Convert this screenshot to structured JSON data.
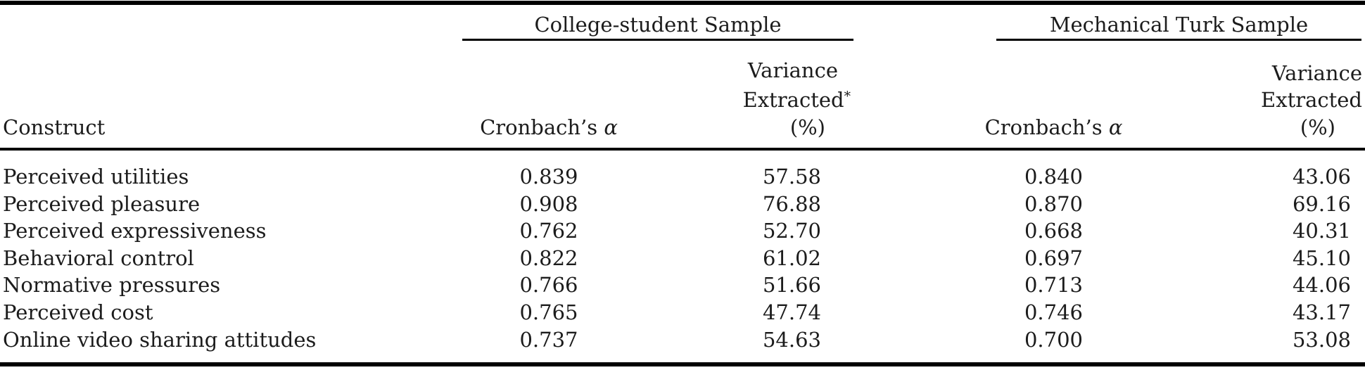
{
  "table": {
    "groups": [
      {
        "label": "College-student Sample"
      },
      {
        "label": "Mechanical Turk Sample"
      }
    ],
    "columns": {
      "construct": "Construct",
      "cronbach_prefix": "Cronbach’s",
      "alpha_symbol": "α",
      "variance_line1": "Variance",
      "variance_line2": "Extracted",
      "variance_star": "*",
      "variance_line3": "(%)"
    },
    "rows": [
      {
        "construct": "Perceived utilities",
        "college_alpha": "0.839",
        "college_ve": "57.58",
        "mturk_alpha": "0.840",
        "mturk_ve": "43.06"
      },
      {
        "construct": "Perceived pleasure",
        "college_alpha": "0.908",
        "college_ve": "76.88",
        "mturk_alpha": "0.870",
        "mturk_ve": "69.16"
      },
      {
        "construct": "Perceived expressiveness",
        "college_alpha": "0.762",
        "college_ve": "52.70",
        "mturk_alpha": "0.668",
        "mturk_ve": "40.31"
      },
      {
        "construct": "Behavioral control",
        "college_alpha": "0.822",
        "college_ve": "61.02",
        "mturk_alpha": "0.697",
        "mturk_ve": "45.10"
      },
      {
        "construct": "Normative pressures",
        "college_alpha": "0.766",
        "college_ve": "51.66",
        "mturk_alpha": "0.713",
        "mturk_ve": "44.06"
      },
      {
        "construct": "Perceived cost",
        "college_alpha": "0.765",
        "college_ve": "47.74",
        "mturk_alpha": "0.746",
        "mturk_ve": "43.17"
      },
      {
        "construct": "Online video sharing attitudes",
        "college_alpha": "0.737",
        "college_ve": "54.63",
        "mturk_alpha": "0.700",
        "mturk_ve": "53.08"
      }
    ]
  },
  "colors": {
    "background": "#ffffff",
    "text": "#1c1c1c",
    "rule": "#000000"
  }
}
